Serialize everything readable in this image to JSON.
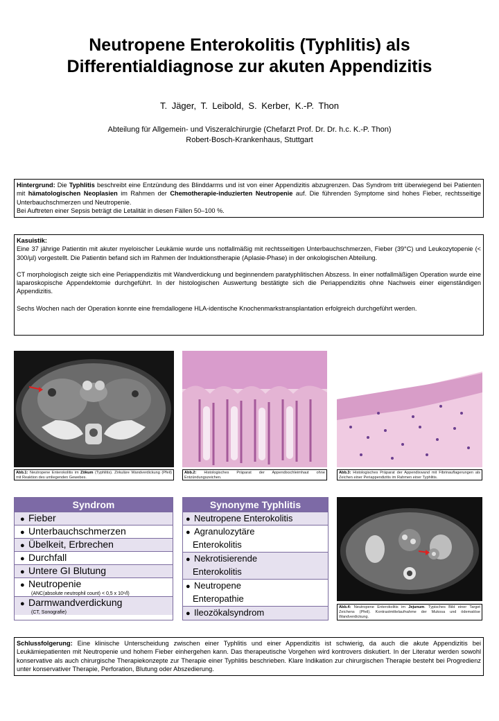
{
  "header": {
    "title_line1": "Neutropene Enterokolitis (Typhlitis) als",
    "title_line2": "Differentialdiagnose zur akuten Appendizitis",
    "authors": "T. Jäger, T. Leibold, S. Kerber, K.-P. Thon",
    "affiliation_line1": "Abteilung für Allgemein- und Viszeralchirurgie (Chefarzt Prof. Dr. Dr. h.c. K.-P. Thon)",
    "affiliation_line2": "Robert-Bosch-Krankenhaus, Stuttgart"
  },
  "hintergrund": {
    "label": "Hintergrund:",
    "t1": " Die ",
    "b1": "Typhlitis",
    "t2": " beschreibt eine Entzündung des Blinddarms und ist von einer Appendizitis abzugrenzen. Das Syndrom tritt überwiegend bei Patienten mit ",
    "b2": "hämatologischen Neoplasien",
    "t3": " im Rahmen der ",
    "b3": "Chemotherapie-induzierten Neutropenie",
    "t4": " auf. Die führenden Symptome sind hohes Fieber, rechtsseitige Unterbauchschmerzen und Neutropenie.",
    "line2": "Bei Auftreten einer Sepsis beträgt die Letalität in diesen Fällen 50–100 %."
  },
  "kasuistik": {
    "label": "Kasuistik:",
    "p1": "Eine 37 jährige Patientin mit akuter myeloischer Leukämie wurde uns notfallmäßig mit rechtsseitigen Unterbauchschmerzen, Fieber (39°C) und Leukozytopenie (< 300/µl) vorgestellt. Die Patientin befand sich im Rahmen der Induktionstherapie (Aplasie-Phase) in der onkologischen Abteilung.",
    "p2": "CT morphologisch zeigte sich eine Periappendizitis mit Wandverdickung und beginnendem paratyphlitischen Abszess. In einer notfallmäßigen Operation wurde eine laparoskopische Appendektomie durchgeführt. In der histologischen Auswertung bestätigte sich die Periappendizitis ohne Nachweis einer eigenständigen Appendizitis.",
    "p3": "Sechs Wochen nach der Operation konnte eine fremdallogene HLA-identische Knochenmarkstransplantation erfolgreich durchgeführt werden."
  },
  "captions": {
    "abb1_label": "Abb.1:",
    "abb1_t1": " Neutropene Enterokolitis im ",
    "abb1_b": "Zökum",
    "abb1_t2": " (Typhlitis). Zirkuläre Wandverdickung (Pfeil) mit Reaktion des umliegenden Gewebes.",
    "abb2_label": "Abb.2:",
    "abb2_text": " Histologisches Präparat der Appendixschleimhaut ohne Entzündungszeichen.",
    "abb3_label": "Abb.3:",
    "abb3_text": " Histologisches Präparat der Appendixwand mit Fibrinauflagerungen als Zeichen einer Periappendizitis im Rahmen einer Typhlitis.",
    "abb4_label": "Abb.4:",
    "abb4_t1": " Neutropene Enterokolitis im ",
    "abb4_b": "Jejunum",
    "abb4_t2": ". Typisches Bild einer Target Zeichens (Pfeil). Kontrastmittelaufnahme der Mukosa und ödematöse Wandverdickung."
  },
  "syndrom": {
    "title": "Syndrom",
    "items": [
      {
        "text": "Fieber",
        "sub": ""
      },
      {
        "text": "Unterbauchschmerzen",
        "sub": ""
      },
      {
        "text": "Übelkeit, Erbrechen",
        "sub": ""
      },
      {
        "text": "Durchfall",
        "sub": ""
      },
      {
        "text": "Untere GI Blutung",
        "sub": ""
      },
      {
        "text": "Neutropenie",
        "sub": "(ANC(absolute neutrophil count) < 0,5 x 10⁹/l)"
      },
      {
        "text": "Darmwandverdickung",
        "sub": "(CT, Sonografie)"
      }
    ]
  },
  "synonyme": {
    "title": "Synonyme Typhlitis",
    "items": [
      {
        "l1": "Neutropene Enterokolitis",
        "l2": ""
      },
      {
        "l1": "Agranulozytäre",
        "l2": "Enterokolitis"
      },
      {
        "l1": "Nekrotisierende",
        "l2": "Enterokolitis"
      },
      {
        "l1": "Neutropene",
        "l2": "Enteropathie"
      },
      {
        "l1": "Ileozökalsyndrom",
        "l2": ""
      }
    ]
  },
  "schluss": {
    "label": "Schlussfolgerung:",
    "text": " Eine klinische Unterscheidung zwischen einer Typhlitis und einer Appendizitis ist schwierig, da auch die akute Appendizitis bei Leukämiepatienten mit Neutropenie und hohem Fieber einhergehen kann. Das therapeutische Vorgehen wird kontrovers diskutiert. In der Literatur werden sowohl konservative als auch chirurgische Therapiekonzepte zur Therapie einer Typhlitis beschrieben. Klare Indikation zur chirurgischen Therapie besteht bei Progredienz unter konservativer Therapie, Perforation, Blutung oder Abszedierung."
  },
  "bullet": "●",
  "colors": {
    "table_header": "#7d6aa6",
    "table_shade": "#e6e1ef",
    "histology": "#e7b8d8"
  }
}
